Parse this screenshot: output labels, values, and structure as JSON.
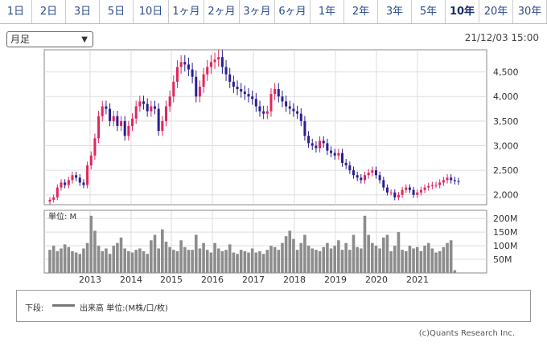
{
  "tabs": [
    "1日",
    "2日",
    "3日",
    "5日",
    "10日",
    "1ヶ月",
    "2ヶ月",
    "3ヶ月",
    "6ヶ月",
    "1年",
    "2年",
    "3年",
    "5年",
    "10年",
    "20年",
    "30年"
  ],
  "active_tab": "10年",
  "period_select": {
    "value": "月足"
  },
  "timestamp": "21/12/03 15:00",
  "legend": {
    "prefix": "下段:",
    "label": "出来高 単位:(M株/口/枚)"
  },
  "copyright": "(c)Quants Research Inc.",
  "chart_data": [
    {
      "type": "candlestick",
      "title": "",
      "x_ticks": [
        "2013",
        "2014",
        "2015",
        "2016",
        "2017",
        "2018",
        "2019",
        "2020",
        "2021"
      ],
      "y_ticks": [
        "2,000",
        "2,500",
        "3,000",
        "3,500",
        "4,000",
        "4,500"
      ],
      "ylim": [
        1800,
        4950
      ],
      "colors": {
        "up": "#e0245e",
        "down": "#2a1f8f"
      },
      "closes": [
        1900,
        1950,
        2150,
        2250,
        2200,
        2300,
        2400,
        2350,
        2250,
        2200,
        2600,
        2800,
        3150,
        3600,
        3800,
        3750,
        3500,
        3600,
        3400,
        3500,
        3200,
        3400,
        3550,
        3800,
        3900,
        3850,
        3700,
        3800,
        3750,
        3300,
        3500,
        3800,
        4000,
        4300,
        4600,
        4700,
        4650,
        4550,
        4400,
        4000,
        4200,
        4450,
        4600,
        4700,
        4750,
        4800,
        4600,
        4450,
        4300,
        4200,
        4150,
        4100,
        4050,
        4000,
        3950,
        3800,
        3700,
        3650,
        3700,
        4050,
        4150,
        4000,
        3900,
        3800,
        3750,
        3700,
        3650,
        3500,
        3200,
        3050,
        3000,
        2950,
        3100,
        3050,
        2900,
        2850,
        2800,
        2850,
        2650,
        2600,
        2500,
        2400,
        2350,
        2300,
        2400,
        2450,
        2500,
        2400,
        2300,
        2150,
        2050,
        2050,
        1950,
        2000,
        2100,
        2150,
        2100,
        2000,
        2050,
        2100,
        2150,
        2180,
        2200,
        2200,
        2250,
        2300,
        2350,
        2300,
        2280,
        2270
      ],
      "volumes": [
        85,
        100,
        80,
        90,
        105,
        95,
        80,
        75,
        70,
        90,
        110,
        210,
        155,
        100,
        80,
        90,
        70,
        100,
        110,
        130,
        90,
        80,
        75,
        85,
        90,
        80,
        70,
        120,
        140,
        90,
        160,
        115,
        95,
        85,
        80,
        120,
        95,
        85,
        85,
        140,
        90,
        110,
        85,
        75,
        110,
        90,
        80,
        85,
        105,
        75,
        70,
        85,
        80,
        75,
        90,
        75,
        80,
        70,
        85,
        100,
        95,
        85,
        110,
        135,
        155,
        125,
        85,
        110,
        140,
        100,
        90,
        85,
        80,
        95,
        110,
        90,
        100,
        120,
        85,
        110,
        85,
        140,
        95,
        90,
        210,
        140,
        110,
        100,
        90,
        130,
        140,
        80,
        100,
        150,
        85,
        80,
        100,
        90,
        95,
        80,
        100,
        110,
        90,
        75,
        80,
        95,
        110,
        120,
        10,
        0
      ],
      "volume_ticks": [
        "50M",
        "100M",
        "150M",
        "200M"
      ],
      "volume_label": "単位: M"
    }
  ]
}
